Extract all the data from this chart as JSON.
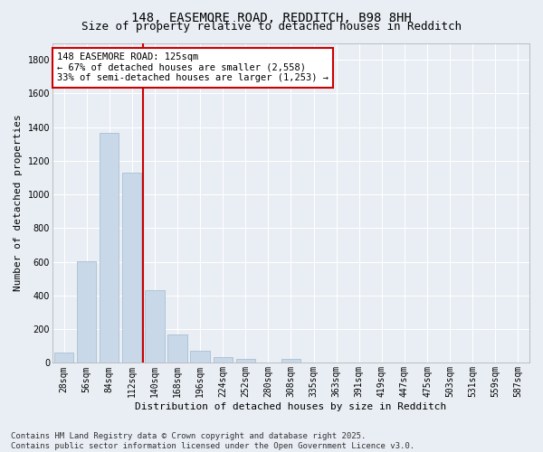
{
  "title1": "148, EASEMORE ROAD, REDDITCH, B98 8HH",
  "title2": "Size of property relative to detached houses in Redditch",
  "xlabel": "Distribution of detached houses by size in Redditch",
  "ylabel": "Number of detached properties",
  "bar_labels": [
    "28sqm",
    "56sqm",
    "84sqm",
    "112sqm",
    "140sqm",
    "168sqm",
    "196sqm",
    "224sqm",
    "252sqm",
    "280sqm",
    "308sqm",
    "335sqm",
    "363sqm",
    "391sqm",
    "419sqm",
    "447sqm",
    "475sqm",
    "503sqm",
    "531sqm",
    "559sqm",
    "587sqm"
  ],
  "bar_values": [
    60,
    605,
    1365,
    1130,
    430,
    170,
    70,
    35,
    25,
    0,
    25,
    0,
    0,
    0,
    0,
    0,
    0,
    0,
    0,
    0,
    0
  ],
  "bar_color": "#c8d8e8",
  "bar_edge_color": "#a0b8cc",
  "vline_x": 3.5,
  "vline_color": "#cc0000",
  "annotation_text": "148 EASEMORE ROAD: 125sqm\n← 67% of detached houses are smaller (2,558)\n33% of semi-detached houses are larger (1,253) →",
  "annotation_box_color": "#ffffff",
  "annotation_box_edge": "#cc0000",
  "ylim": [
    0,
    1900
  ],
  "yticks": [
    0,
    200,
    400,
    600,
    800,
    1000,
    1200,
    1400,
    1600,
    1800
  ],
  "bg_color": "#e8eef4",
  "plot_bg_color": "#e8eef4",
  "footnote": "Contains HM Land Registry data © Crown copyright and database right 2025.\nContains public sector information licensed under the Open Government Licence v3.0.",
  "title_fontsize": 10,
  "subtitle_fontsize": 9,
  "axis_label_fontsize": 8,
  "tick_fontsize": 7,
  "footnote_fontsize": 6.5,
  "annot_fontsize": 7.5,
  "grid_color": "#ffffff",
  "spine_color": "#aaaaaa"
}
